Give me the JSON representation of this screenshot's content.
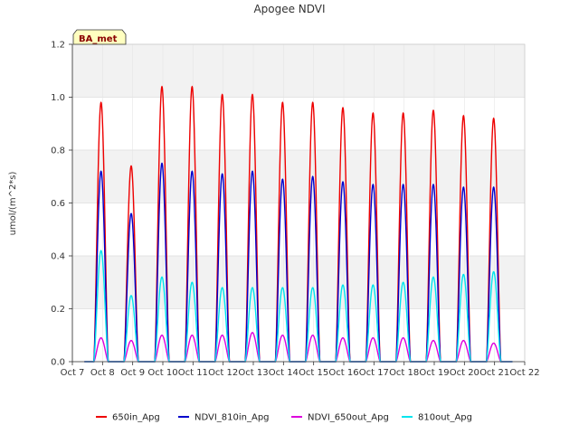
{
  "chart_data": {
    "type": "line",
    "title": "Apogee NDVI",
    "ylabel": "umol/(m^2*s)",
    "xlabel": "",
    "site_label": "BA_met",
    "ylim": [
      0.0,
      1.2
    ],
    "yticks": [
      "0.0",
      "0.2",
      "0.4",
      "0.6",
      "0.8",
      "1.0",
      "1.2"
    ],
    "xlim_days": [
      7,
      22
    ],
    "xticks": [
      "Oct 7",
      "Oct 8",
      "Oct 9",
      "Oct 10",
      "Oct 11",
      "Oct 12",
      "Oct 13",
      "Oct 14",
      "Oct 15",
      "Oct 16",
      "Oct 17",
      "Oct 18",
      "Oct 19",
      "Oct 20",
      "Oct 21",
      "Oct 22"
    ],
    "grid": "horizontal-bands",
    "legend_position": "bottom",
    "peak_days": [
      7.95,
      8.95,
      9.97,
      10.97,
      11.97,
      12.97,
      13.97,
      14.97,
      15.97,
      16.97,
      17.97,
      18.97,
      19.97,
      20.97
    ],
    "series": [
      {
        "name": "650in_Apg",
        "color": "#ee0000",
        "peaks": [
          0.98,
          0.74,
          1.04,
          1.04,
          1.01,
          1.01,
          0.98,
          0.98,
          0.96,
          0.94,
          0.94,
          0.95,
          0.93,
          0.92
        ]
      },
      {
        "name": "NDVI_810in_Apg",
        "color": "#0000cc",
        "peaks": [
          0.72,
          0.56,
          0.75,
          0.72,
          0.71,
          0.72,
          0.69,
          0.7,
          0.68,
          0.67,
          0.67,
          0.67,
          0.66,
          0.66
        ]
      },
      {
        "name": "NDVI_650out_Apg",
        "color": "#dd00dd",
        "peaks": [
          0.09,
          0.08,
          0.1,
          0.1,
          0.1,
          0.11,
          0.1,
          0.1,
          0.09,
          0.09,
          0.09,
          0.08,
          0.08,
          0.07
        ]
      },
      {
        "name": "810out_Apg",
        "color": "#00e5ee",
        "peaks": [
          0.42,
          0.25,
          0.32,
          0.3,
          0.28,
          0.28,
          0.28,
          0.28,
          0.29,
          0.29,
          0.3,
          0.32,
          0.33,
          0.34
        ]
      }
    ]
  }
}
